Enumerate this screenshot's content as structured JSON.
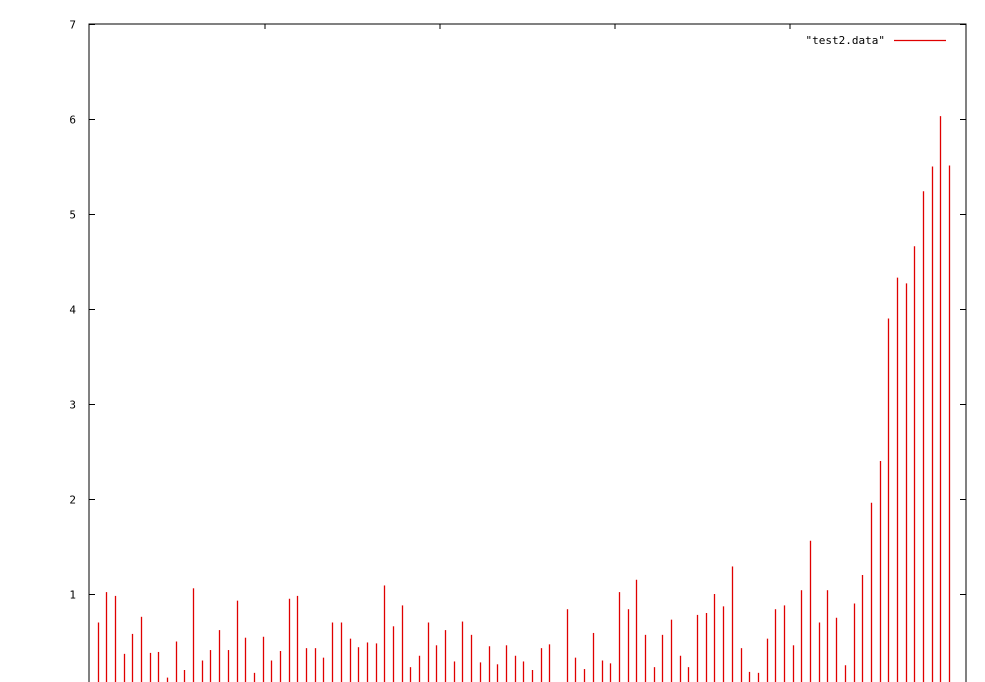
{
  "chart_data": {
    "type": "bar",
    "style": "impulses",
    "title": "",
    "xlabel": "",
    "ylabel": "",
    "ylim": [
      0,
      7
    ],
    "yticks": [
      1,
      2,
      3,
      4,
      5,
      6,
      7
    ],
    "grid": false,
    "legend_position": "top-right",
    "series": [
      {
        "name": "\"test2.data\"",
        "color": "#e00000",
        "values": [
          0.7,
          1.02,
          0.98,
          0.37,
          0.58,
          0.76,
          0.38,
          0.39,
          0.12,
          0.5,
          0.2,
          1.06,
          0.3,
          0.41,
          0.62,
          0.41,
          0.93,
          0.54,
          0.17,
          0.55,
          0.3,
          0.4,
          0.95,
          0.98,
          0.43,
          0.43,
          0.33,
          0.7,
          0.7,
          0.53,
          0.44,
          0.49,
          0.48,
          1.09,
          0.66,
          0.88,
          0.23,
          0.35,
          0.7,
          0.46,
          0.62,
          0.29,
          0.71,
          0.57,
          0.28,
          0.45,
          0.26,
          0.46,
          0.35,
          0.29,
          0.2,
          0.43,
          0.47,
          0.0,
          0.84,
          0.33,
          0.21,
          0.59,
          0.3,
          0.27,
          1.02,
          0.84,
          1.15,
          0.57,
          0.23,
          0.57,
          0.73,
          0.35,
          0.23,
          0.78,
          0.8,
          1.0,
          0.87,
          1.29,
          0.43,
          0.18,
          0.17,
          0.53,
          0.84,
          0.88,
          0.46,
          1.04,
          1.56,
          0.7,
          1.04,
          0.75,
          0.25,
          0.9,
          1.2,
          1.96,
          2.4,
          3.9,
          4.33,
          4.27,
          4.66,
          5.24,
          5.5,
          6.03,
          5.51
        ]
      }
    ]
  }
}
